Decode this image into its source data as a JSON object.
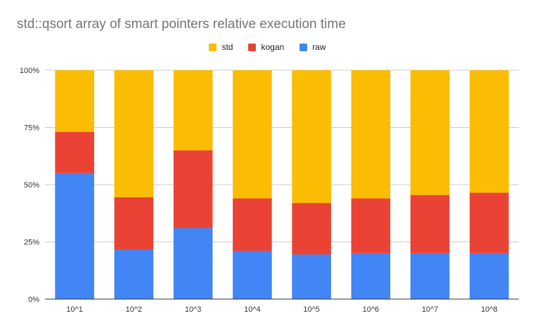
{
  "chart_data": {
    "type": "bar",
    "stacked": true,
    "normalized": true,
    "title": "std::qsort array of smart pointers relative execution time",
    "xlabel": "",
    "ylabel": "",
    "categories": [
      "10^1",
      "10^2",
      "10^3",
      "10^4",
      "10^5",
      "10^6",
      "10^7",
      "10^8"
    ],
    "series": [
      {
        "name": "raw",
        "color": "#4285f4",
        "values": [
          55,
          21.5,
          31,
          21,
          19.5,
          20,
          20,
          20
        ]
      },
      {
        "name": "kogan",
        "color": "#ea4335",
        "values": [
          18,
          23,
          34,
          23,
          22.5,
          24,
          25.5,
          26.5
        ]
      },
      {
        "name": "std",
        "color": "#fbbc04",
        "values": [
          27,
          55.5,
          35,
          56,
          58,
          56,
          54.5,
          53.5
        ]
      }
    ],
    "legend_order": [
      "std",
      "kogan",
      "raw"
    ],
    "yticks": [
      "0%",
      "25%",
      "50%",
      "75%",
      "100%"
    ],
    "ylim": [
      0,
      100
    ],
    "grid": true,
    "legend_position": "top-center"
  }
}
